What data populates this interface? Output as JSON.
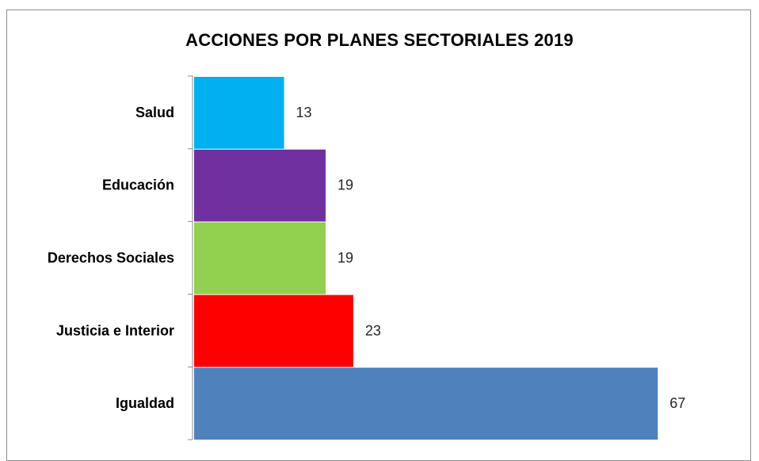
{
  "chart_data": {
    "type": "bar",
    "orientation": "horizontal",
    "title": "ACCIONES POR PLANES SECTORIALES 2019",
    "categories": [
      "Salud",
      "Educación",
      "Derechos Sociales",
      "Justicia e Interior",
      "Igualdad"
    ],
    "values": [
      13,
      19,
      19,
      23,
      67
    ],
    "bar_colors": [
      "#00b0f0",
      "#7030a0",
      "#92d050",
      "#ff0000",
      "#4f81bd"
    ],
    "xlabel": "",
    "ylabel": "",
    "xlim": [
      0,
      68
    ],
    "grid": false,
    "legend": "none",
    "data_labels": true
  }
}
